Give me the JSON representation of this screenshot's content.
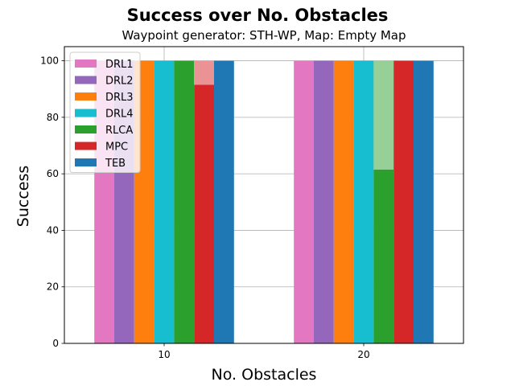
{
  "chart_data": {
    "type": "bar",
    "title": "Success over No. Obstacles",
    "subtitle": "Waypoint generator: STH-WP, Map: Empty Map",
    "xlabel": "No. Obstacles",
    "ylabel": "Success",
    "categories": [
      "10",
      "20"
    ],
    "ylim": [
      0,
      105
    ],
    "yticks": [
      0,
      20,
      40,
      60,
      80,
      100
    ],
    "grid": true,
    "legend_position": "top-left",
    "stacked_bars": "solid base with lighter segment up to 100",
    "series": [
      {
        "name": "DRL1",
        "color": "#e377c2",
        "values": [
          100,
          100
        ],
        "totals": [
          100,
          100
        ]
      },
      {
        "name": "DRL2",
        "color": "#9467bd",
        "values": [
          100,
          100
        ],
        "totals": [
          100,
          100
        ]
      },
      {
        "name": "DRL3",
        "color": "#ff7f0e",
        "values": [
          100,
          100
        ],
        "totals": [
          100,
          100
        ]
      },
      {
        "name": "DRL4",
        "color": "#17becf",
        "values": [
          100,
          100
        ],
        "totals": [
          100,
          100
        ]
      },
      {
        "name": "RLCA",
        "color": "#2ca02c",
        "values": [
          100,
          61.5
        ],
        "totals": [
          100,
          100
        ]
      },
      {
        "name": "MPC",
        "color": "#d62728",
        "values": [
          91.5,
          100
        ],
        "totals": [
          100,
          100
        ]
      },
      {
        "name": "TEB",
        "color": "#1f77b4",
        "values": [
          100,
          100
        ],
        "totals": [
          100,
          100
        ]
      }
    ]
  }
}
